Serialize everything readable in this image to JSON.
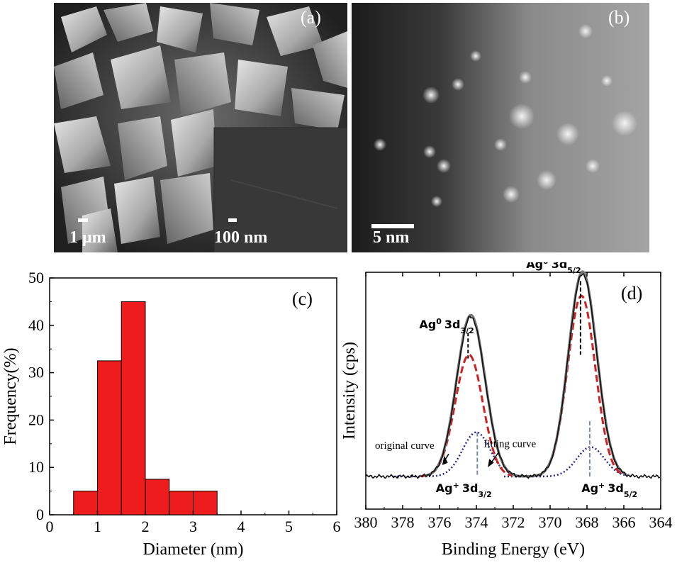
{
  "panels": {
    "a": {
      "label": "(a)",
      "scalebar_main": "1 μm",
      "scalebar_inset": "100 nm"
    },
    "b": {
      "label": "(b)",
      "scalebar": "5 nm"
    }
  },
  "chart_data": [
    {
      "panel_label": "(c)",
      "type": "bar",
      "xlabel": "Diameter (nm)",
      "ylabel": "Frequency(%)",
      "xlim": [
        0,
        6
      ],
      "ylim": [
        0,
        50
      ],
      "x_ticks": [
        "0",
        "1",
        "2",
        "3",
        "4",
        "5",
        "6"
      ],
      "y_ticks": [
        "0",
        "10",
        "20",
        "30",
        "40",
        "50"
      ],
      "bin_width": 0.5,
      "x": [
        0.75,
        1.25,
        1.75,
        2.25,
        2.75,
        3.25
      ],
      "values": [
        5,
        32.5,
        45,
        7.5,
        5,
        5
      ],
      "color": "#ee1c1c"
    },
    {
      "panel_label": "(d)",
      "type": "line",
      "xlabel": "Binding Energy (eV)",
      "ylabel": "Intensity (cps)",
      "xlim": [
        380,
        364
      ],
      "x_ticks": [
        "380",
        "378",
        "376",
        "374",
        "372",
        "370",
        "368",
        "366",
        "364"
      ],
      "colors": {
        "original": "#111111",
        "fitting": "#777777",
        "ag0": "#cc2222",
        "agplus": "#2a2a8a"
      },
      "peaks": [
        {
          "name": "Ag0 3d5/2",
          "center": 368.3,
          "height": 0.98
        },
        {
          "name": "Ag0 3d3/2",
          "center": 374.4,
          "height": 0.66
        },
        {
          "name": "Ag+ 3d5/2",
          "center": 367.8,
          "height": 0.16
        },
        {
          "name": "Ag+ 3d3/2",
          "center": 374.0,
          "height": 0.24
        }
      ],
      "annotations": {
        "ag0_52": "Ag0 3d5/2",
        "ag0_32": "Ag0 3d3/2",
        "agp_32": "Ag+ 3d3/2",
        "agp_52": "Ag+ 3d5/2",
        "original_curve": "original curve",
        "fitting_curve": "fitting curve"
      }
    }
  ]
}
